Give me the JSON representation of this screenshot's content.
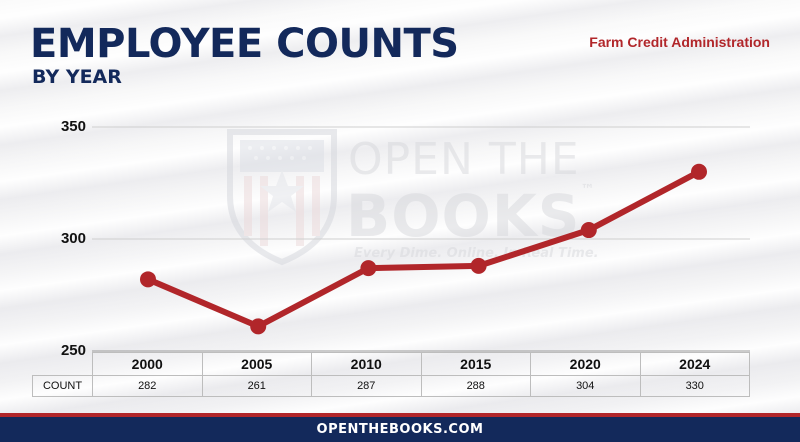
{
  "header": {
    "title": "EMPLOYEE COUNTS",
    "subtitle": "BY YEAR",
    "agency": "Farm Credit Administration"
  },
  "watermark": {
    "line1": "OPEN THE",
    "line2": "BOOKS",
    "trademark": "™",
    "tagline": "Every Dime. Online. In Real Time."
  },
  "chart_data": {
    "type": "line",
    "title": "EMPLOYEE COUNTS",
    "subtitle": "BY YEAR",
    "categories": [
      "2000",
      "2005",
      "2010",
      "2015",
      "2020",
      "2024"
    ],
    "series": [
      {
        "name": "COUNT",
        "values": [
          282,
          261,
          287,
          288,
          304,
          330
        ]
      }
    ],
    "yticks": [
      250,
      300,
      350
    ],
    "ylim": [
      250,
      350
    ],
    "grid": true,
    "line_color": "#b1262a",
    "table_row_label": "COUNT"
  },
  "colors": {
    "navy": "#13295b",
    "red": "#b1262a"
  },
  "footer": {
    "site": "OPENTHEBOOKS.COM"
  }
}
